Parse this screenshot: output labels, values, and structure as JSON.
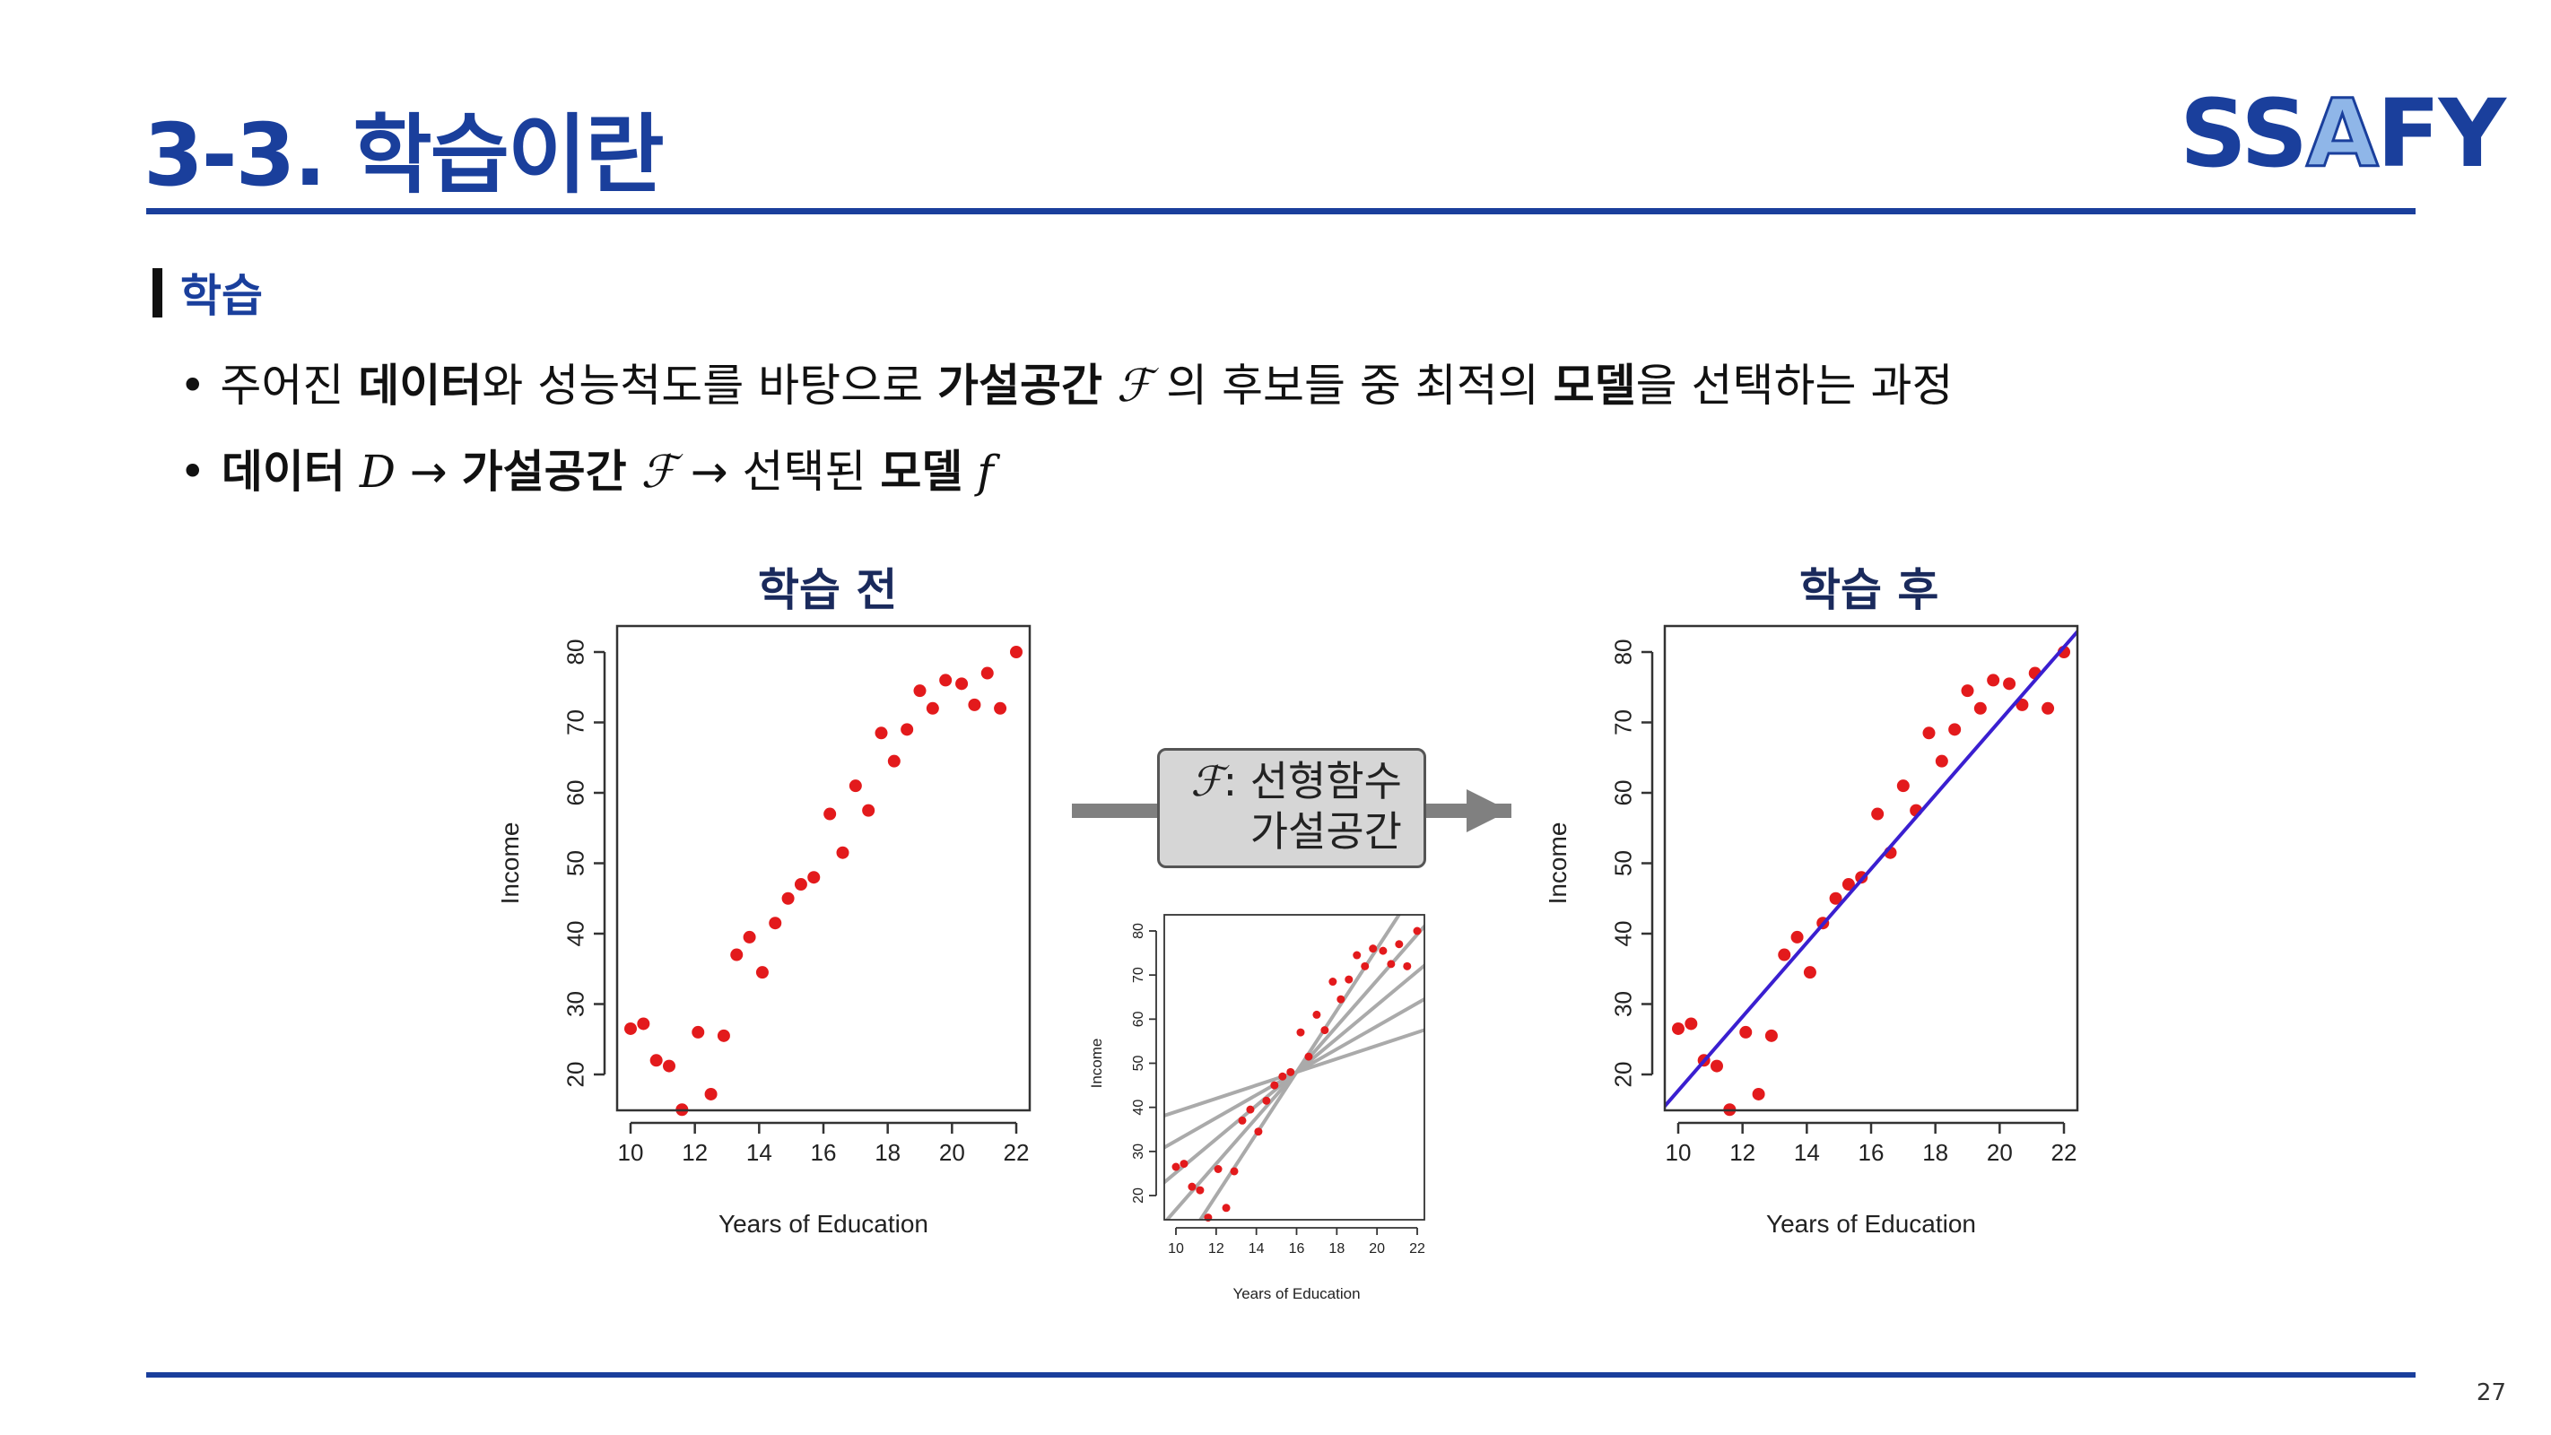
{
  "header": {
    "title": "3-3. 학습이란",
    "logo_text": "SSAFY",
    "page_number": "27"
  },
  "section": {
    "label": "학습"
  },
  "bullets": {
    "b1": {
      "dot": "•",
      "p1": " 주어진 ",
      "data": "데이터",
      "p2": "와 성능척도를 바탕으로 ",
      "hyp": "가설공간",
      "sym": " ℱ",
      "p3": " 의 후보들 중 최적의 ",
      "model": "모델",
      "p4": "을 선택하는 과정"
    },
    "b2": {
      "dot": "•",
      "data": " 데이터",
      "D": " D",
      "arrow1": " → ",
      "hyp": " 가설공간",
      "sym": " ℱ",
      "arrow2": " → ",
      "sel": "선택된 ",
      "model": "모델",
      "f": " f"
    }
  },
  "headings": {
    "before": "학습 전",
    "after": "학습 후"
  },
  "box": {
    "symbol": "ℱ",
    "line1": ": 선형함수",
    "line2": "가설공간"
  },
  "colors": {
    "brand": "#1a3f9c",
    "point": "#e31a1c",
    "fit_line": "#3a1fd0",
    "candidate_line": "#aaaaaa"
  },
  "chart_data": [
    {
      "type": "scatter",
      "title": "학습 전",
      "xlabel": "Years of Education",
      "ylabel": "Income",
      "xlim": [
        9.5,
        22.5
      ],
      "ylim": [
        14,
        83
      ],
      "xticks": [
        10,
        12,
        14,
        16,
        18,
        20,
        22
      ],
      "yticks": [
        20,
        30,
        40,
        50,
        60,
        70,
        80
      ],
      "x": [
        10.0,
        10.4,
        10.8,
        11.2,
        11.6,
        12.1,
        12.5,
        12.9,
        13.3,
        13.7,
        14.1,
        14.5,
        14.9,
        15.3,
        15.7,
        16.2,
        16.6,
        17.0,
        17.4,
        17.8,
        18.2,
        18.6,
        19.0,
        19.4,
        19.8,
        20.3,
        20.7,
        21.1,
        21.5,
        22.0
      ],
      "y": [
        26.5,
        27.2,
        22.0,
        21.2,
        15.0,
        26.0,
        17.2,
        25.5,
        37.0,
        39.5,
        34.5,
        41.5,
        45.0,
        47.0,
        48.0,
        57.0,
        51.5,
        61.0,
        57.5,
        68.5,
        64.5,
        69.0,
        74.5,
        72.0,
        76.0,
        75.5,
        72.5,
        77.0,
        72.0,
        80.0
      ]
    },
    {
      "type": "scatter",
      "title": "",
      "xlabel": "Years of Education",
      "ylabel": "Income",
      "xlim": [
        9.5,
        22.5
      ],
      "ylim": [
        14,
        83
      ],
      "xticks": [
        10,
        12,
        14,
        16,
        18,
        20,
        22
      ],
      "yticks": [
        20,
        30,
        40,
        50,
        60,
        70,
        80
      ],
      "x": [
        10.0,
        10.4,
        10.8,
        11.2,
        11.6,
        12.1,
        12.5,
        12.9,
        13.3,
        13.7,
        14.1,
        14.5,
        14.9,
        15.3,
        15.7,
        16.2,
        16.6,
        17.0,
        17.4,
        17.8,
        18.2,
        18.6,
        19.0,
        19.4,
        19.8,
        20.3,
        20.7,
        21.1,
        21.5,
        22.0
      ],
      "y": [
        26.5,
        27.2,
        22.0,
        21.2,
        15.0,
        26.0,
        17.2,
        25.5,
        37.0,
        39.5,
        34.5,
        41.5,
        45.0,
        47.0,
        48.0,
        57.0,
        51.5,
        61.0,
        57.5,
        68.5,
        64.5,
        69.0,
        74.5,
        72.0,
        76.0,
        75.5,
        72.5,
        77.0,
        72.0,
        80.0
      ],
      "candidate_lines": [
        {
          "slope": 1.5,
          "intercept": 24.0
        },
        {
          "slope": 2.6,
          "intercept": 6.4
        },
        {
          "slope": 3.8,
          "intercept": -12.8
        },
        {
          "slope": 5.2,
          "intercept": -35.2
        },
        {
          "slope": 7.0,
          "intercept": -64.0
        }
      ]
    },
    {
      "type": "scatter",
      "title": "학습 후",
      "xlabel": "Years of Education",
      "ylabel": "Income",
      "xlim": [
        9.5,
        22.5
      ],
      "ylim": [
        14,
        83
      ],
      "xticks": [
        10,
        12,
        14,
        16,
        18,
        20,
        22
      ],
      "yticks": [
        20,
        30,
        40,
        50,
        60,
        70,
        80
      ],
      "x": [
        10.0,
        10.4,
        10.8,
        11.2,
        11.6,
        12.1,
        12.5,
        12.9,
        13.3,
        13.7,
        14.1,
        14.5,
        14.9,
        15.3,
        15.7,
        16.2,
        16.6,
        17.0,
        17.4,
        17.8,
        18.2,
        18.6,
        19.0,
        19.4,
        19.8,
        20.3,
        20.7,
        21.1,
        21.5,
        22.0
      ],
      "y": [
        26.5,
        27.2,
        22.0,
        21.2,
        15.0,
        26.0,
        17.2,
        25.5,
        37.0,
        39.5,
        34.5,
        41.5,
        45.0,
        47.0,
        48.0,
        57.0,
        51.5,
        61.0,
        57.5,
        68.5,
        64.5,
        69.0,
        74.5,
        72.0,
        76.0,
        75.5,
        72.5,
        77.0,
        72.0,
        80.0
      ],
      "fit_line": {
        "slope": 5.25,
        "intercept": -34.8
      }
    }
  ]
}
